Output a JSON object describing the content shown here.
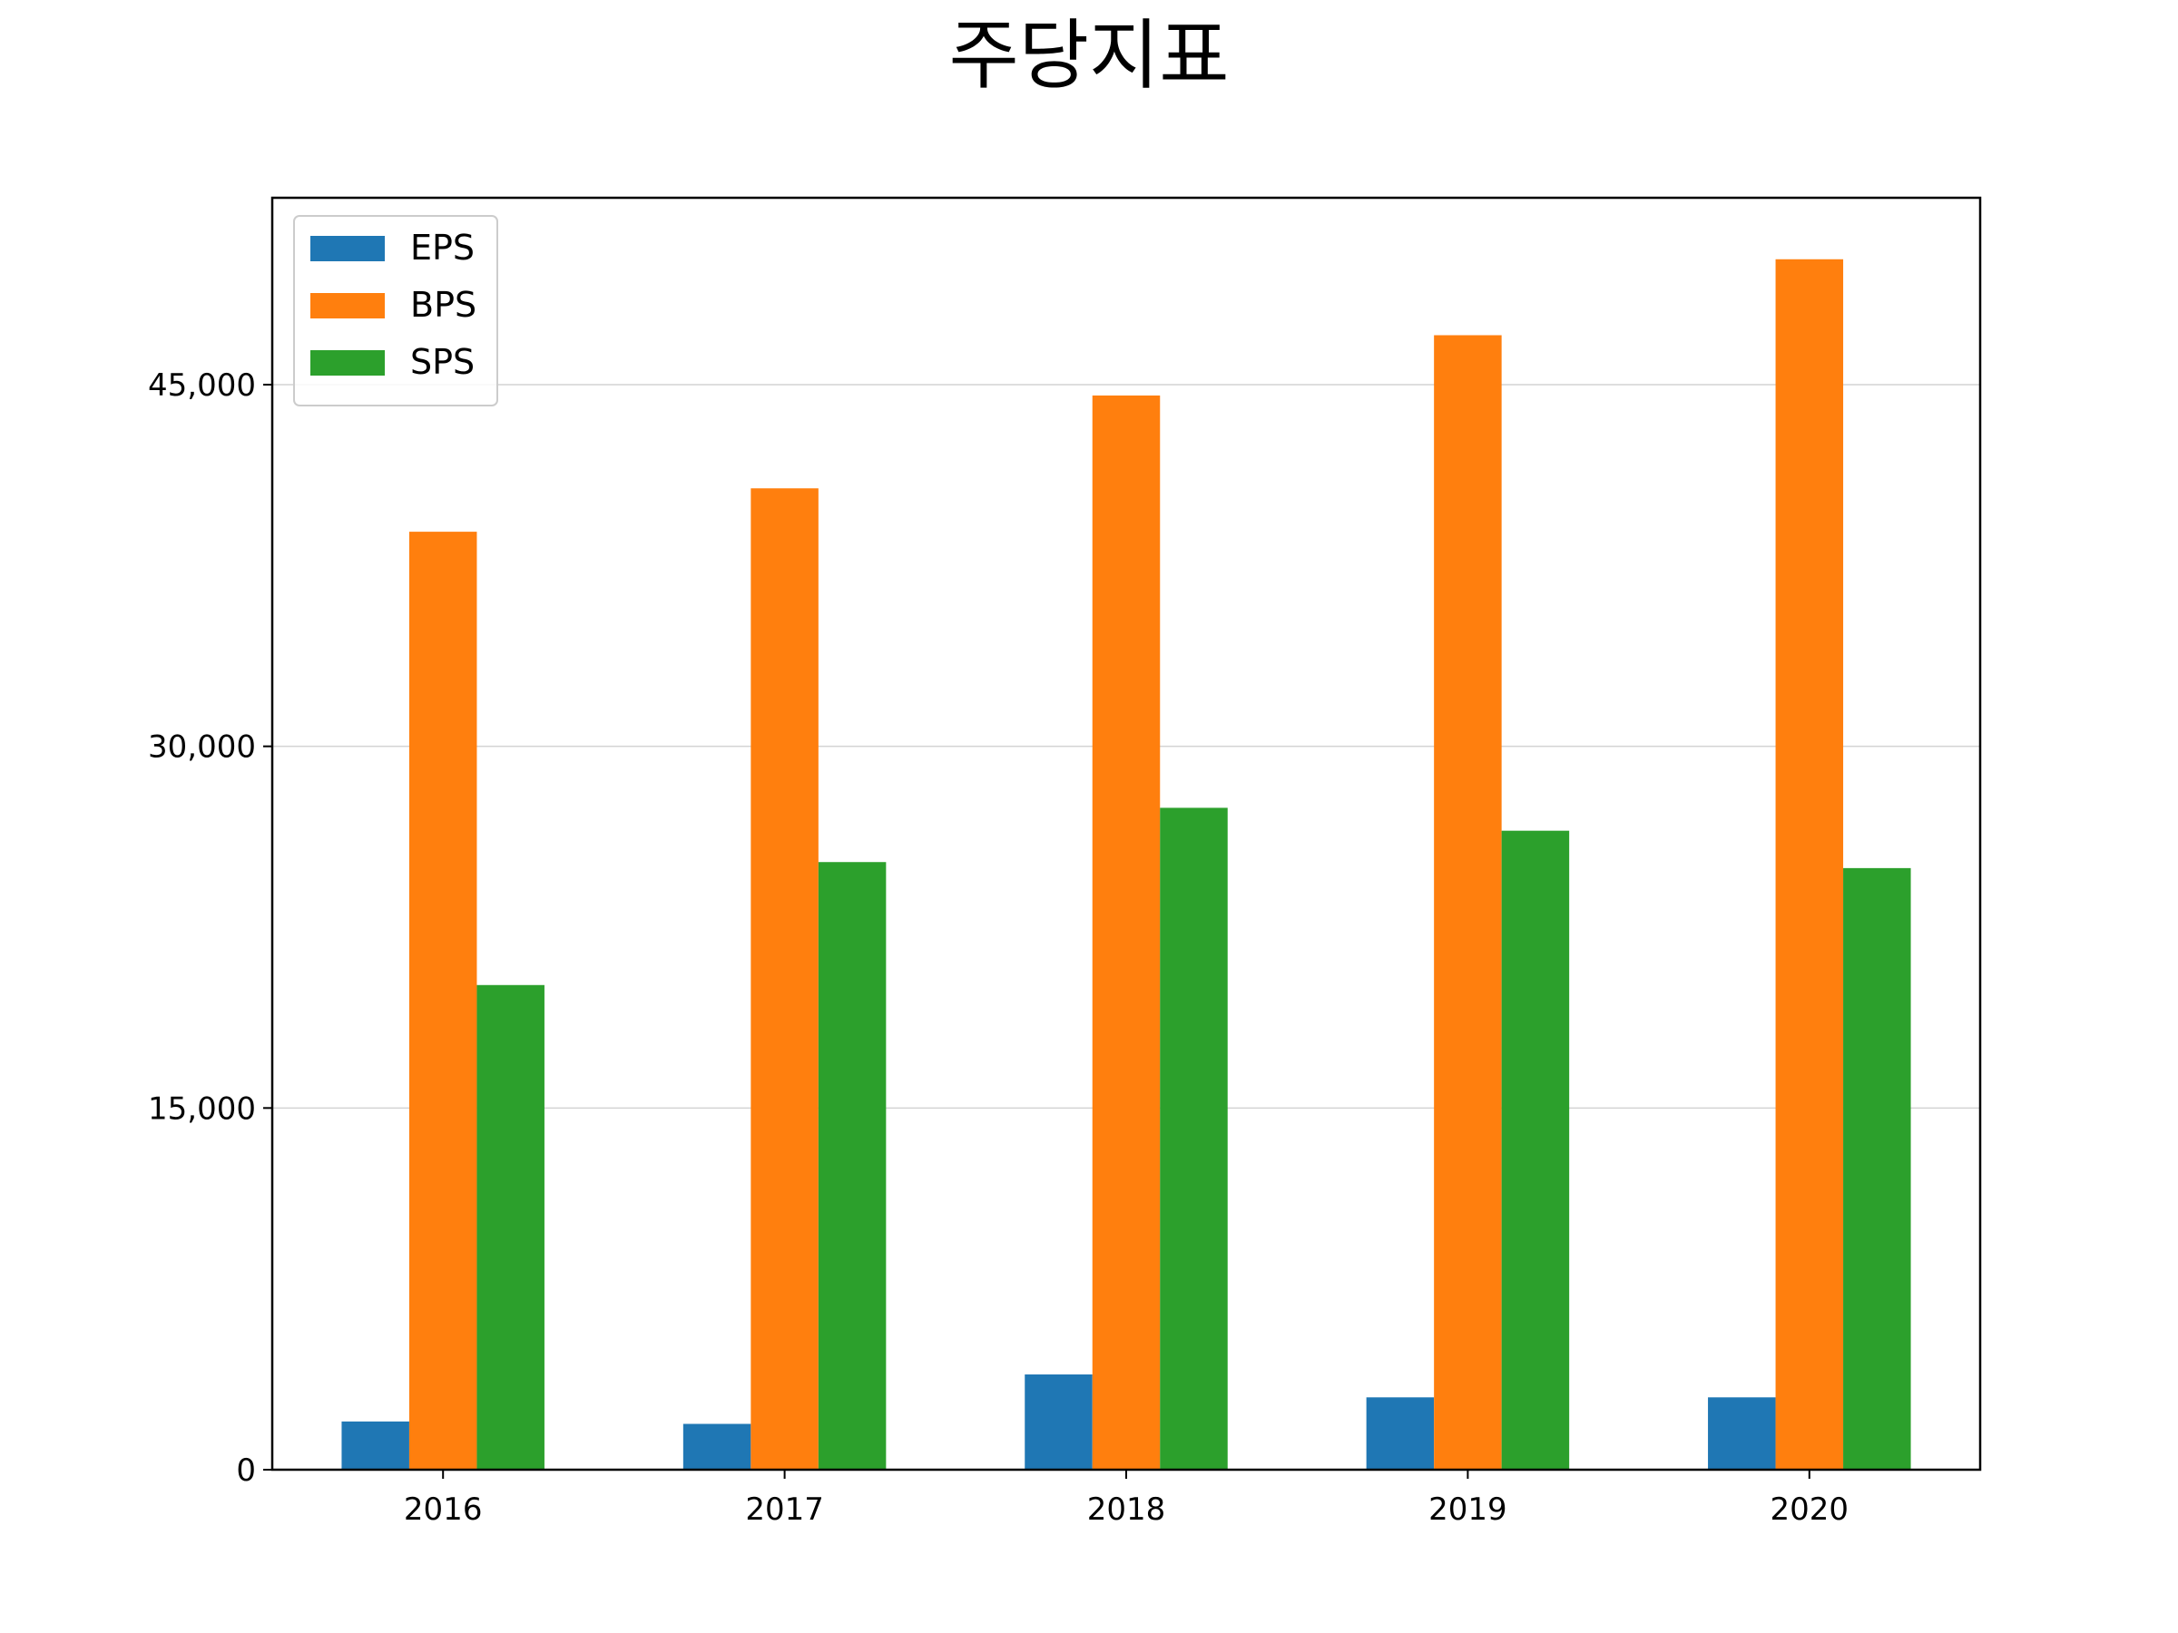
{
  "chart_data": {
    "type": "bar",
    "title": "주당지표",
    "xlabel": "",
    "ylabel": "",
    "categories": [
      "2016",
      "2017",
      "2018",
      "2019",
      "2020"
    ],
    "series": [
      {
        "name": "EPS",
        "color": "#1f77b4",
        "values": [
          2000,
          1900,
          3950,
          3000,
          3000
        ]
      },
      {
        "name": "BPS",
        "color": "#ff7f0e",
        "values": [
          38900,
          40700,
          44550,
          47050,
          50200
        ]
      },
      {
        "name": "SPS",
        "color": "#2ca02c",
        "values": [
          20100,
          25200,
          27450,
          26500,
          24950
        ]
      }
    ],
    "ylim": [
      0,
      52750
    ],
    "yticks": [
      0,
      15000,
      30000,
      45000
    ],
    "ytick_labels": [
      "0",
      "15,000",
      "30,000",
      "45,000"
    ],
    "grid": "horizontal",
    "legend_position": "top-left"
  }
}
